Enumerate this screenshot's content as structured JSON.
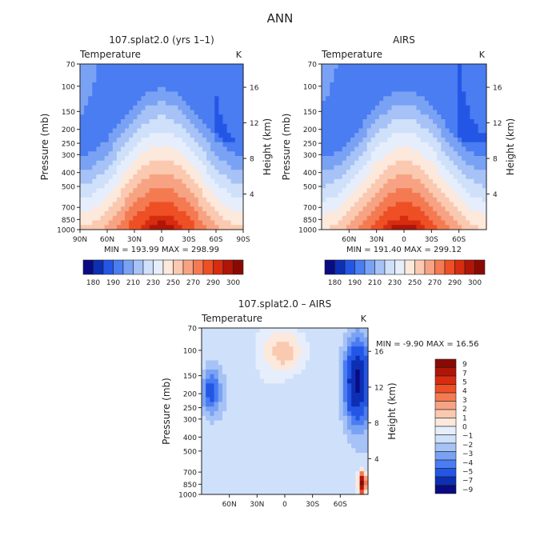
{
  "page_title": "ANN",
  "chart_data": [
    {
      "type": "heatmap",
      "title": "107.splat2.0 (yrs 1–1)",
      "field_label": "Temperature",
      "units": "K",
      "ylabel": "Pressure (mb)",
      "ylabel_right": "Height (km)",
      "x_ticks": [
        "90N",
        "60N",
        "30N",
        "0",
        "30S",
        "60S",
        "90S"
      ],
      "x_range": [
        90,
        -90
      ],
      "y_ticks": [
        70,
        100,
        150,
        200,
        250,
        300,
        400,
        500,
        700,
        850,
        1000
      ],
      "y_range": [
        70,
        1000
      ],
      "height_ticks": [
        4,
        8,
        12,
        16
      ],
      "stats": "MIN = 193.99   MAX = 298.99",
      "colorbar": {
        "orientation": "horizontal",
        "levels": [
          180,
          185,
          190,
          200,
          210,
          220,
          230,
          240,
          250,
          260,
          270,
          280,
          290,
          295,
          300
        ],
        "labels": [
          "180",
          "190",
          "210",
          "230",
          "250",
          "270",
          "290",
          "300"
        ],
        "colors": [
          "#0a0a82",
          "#0c2fb4",
          "#2456e6",
          "#4a7cf2",
          "#7aa2f4",
          "#a6c2f6",
          "#cfe0fa",
          "#e6eefc",
          "#fde8dc",
          "#fac9b0",
          "#f7a383",
          "#f47a52",
          "#ee4f25",
          "#d72c10",
          "#b01507",
          "#8a0a03"
        ]
      }
    },
    {
      "type": "heatmap",
      "title": "AIRS",
      "field_label": "Temperature",
      "units": "K",
      "ylabel": "Pressure (mb)",
      "ylabel_right": "Height (km)",
      "x_ticks": [
        "60N",
        "30N",
        "0",
        "30S",
        "60S"
      ],
      "x_range": [
        90,
        -90
      ],
      "y_ticks": [
        70,
        100,
        150,
        200,
        250,
        300,
        400,
        500,
        700,
        850,
        1000
      ],
      "y_range": [
        70,
        1000
      ],
      "height_ticks": [
        4,
        8,
        12,
        16
      ],
      "stats": "MIN = 191.40   MAX = 299.12",
      "colorbar": {
        "orientation": "horizontal",
        "levels": [
          180,
          185,
          190,
          200,
          210,
          220,
          230,
          240,
          250,
          260,
          270,
          280,
          290,
          295,
          300
        ],
        "labels": [
          "180",
          "190",
          "210",
          "230",
          "250",
          "270",
          "290",
          "300"
        ],
        "colors": [
          "#0a0a82",
          "#0c2fb4",
          "#2456e6",
          "#4a7cf2",
          "#7aa2f4",
          "#a6c2f6",
          "#cfe0fa",
          "#e6eefc",
          "#fde8dc",
          "#fac9b0",
          "#f7a383",
          "#f47a52",
          "#ee4f25",
          "#d72c10",
          "#b01507",
          "#8a0a03"
        ]
      }
    },
    {
      "type": "heatmap",
      "title": "107.splat2.0 – AIRS",
      "field_label": "Temperature",
      "units": "K",
      "ylabel": "Pressure (mb)",
      "ylabel_right": "Height (km)",
      "x_ticks": [
        "60N",
        "30N",
        "0",
        "30S",
        "60S"
      ],
      "x_range": [
        90,
        -90
      ],
      "y_ticks": [
        70,
        100,
        150,
        200,
        250,
        300,
        400,
        500,
        700,
        850,
        1000
      ],
      "y_range": [
        70,
        1000
      ],
      "height_ticks": [
        4,
        8,
        12,
        16
      ],
      "stats": "MIN =  -9.90   MAX =  16.56",
      "colorbar": {
        "orientation": "vertical",
        "levels": [
          -9,
          -7,
          -5,
          -4,
          -3,
          -2,
          -1,
          0,
          1,
          2,
          3,
          4,
          5,
          7,
          9
        ],
        "labels": [
          "9",
          "7",
          "5",
          "4",
          "3",
          "2",
          "1",
          "0",
          "−1",
          "−2",
          "−3",
          "−4",
          "−5",
          "−7",
          "−9"
        ],
        "colors": [
          "#0a0a82",
          "#0c2fb4",
          "#2456e6",
          "#4a7cf2",
          "#7aa2f4",
          "#a6c2f6",
          "#cfe0fa",
          "#e6eefc",
          "#fde8dc",
          "#fac9b0",
          "#f7a383",
          "#f47a52",
          "#ee4f25",
          "#d72c10",
          "#b01507",
          "#8a0a03"
        ]
      }
    }
  ]
}
